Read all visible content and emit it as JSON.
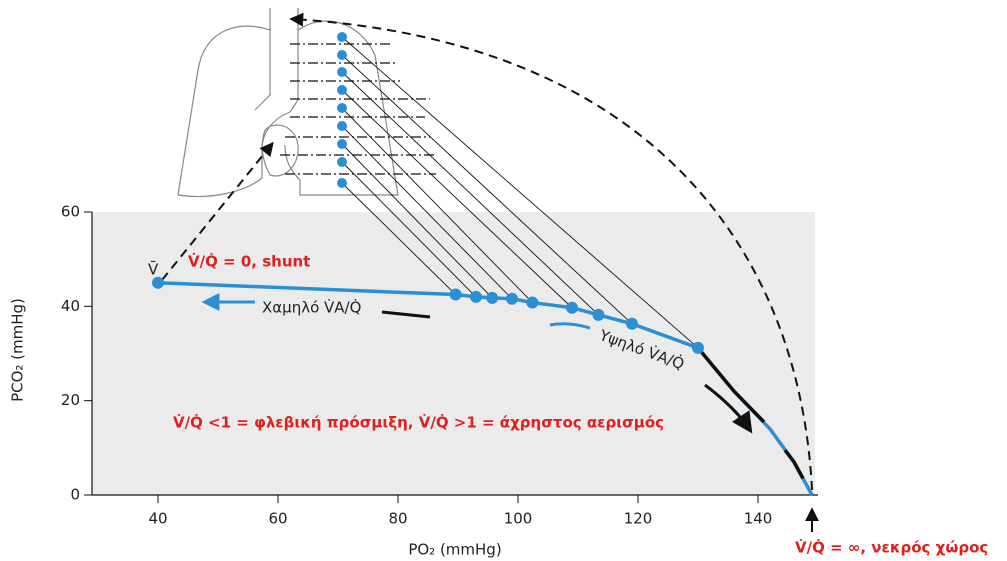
{
  "chart_data": {
    "type": "line",
    "xlabel": "PO₂ (mmHg)",
    "ylabel": "PCO₂ (mmHg)",
    "xlim": [
      29,
      150
    ],
    "ylim": [
      0,
      60
    ],
    "xticks": [
      40,
      60,
      80,
      100,
      120,
      140
    ],
    "yticks": [
      0,
      20,
      40,
      60
    ],
    "series": [
      {
        "color": "#2a8fd4",
        "x": [
          40,
          89.6,
          93,
          95.7,
          99,
          102.4,
          109,
          113.4,
          119,
          130,
          136,
          142,
          146,
          149
        ],
        "y": [
          45,
          42.5,
          42,
          41.8,
          41.6,
          40.8,
          39.7,
          38.2,
          36.3,
          31.2,
          22,
          14,
          7,
          0
        ]
      }
    ],
    "points": {
      "color": "#2a8fd4",
      "x": [
        40,
        89.6,
        93,
        95.7,
        99,
        102.4,
        109,
        113.4,
        119,
        130
      ],
      "y": [
        45,
        42.5,
        42,
        41.8,
        41.6,
        40.8,
        39.7,
        38.2,
        36.3,
        31.2
      ]
    },
    "annotations": [
      "V̄",
      "V̇/Q̇ = 0, shunt",
      "Χαμηλό V̇A/Q̇",
      "Υψηλό V̇A/Q̇",
      "V̇/Q̇ <1 = φλεβική πρόσμιξη, V̇/Q̇ >1 = άχρηστος αερισμός",
      "V̇/Q̇ = ∞, νεκρός χώρος"
    ]
  }
}
